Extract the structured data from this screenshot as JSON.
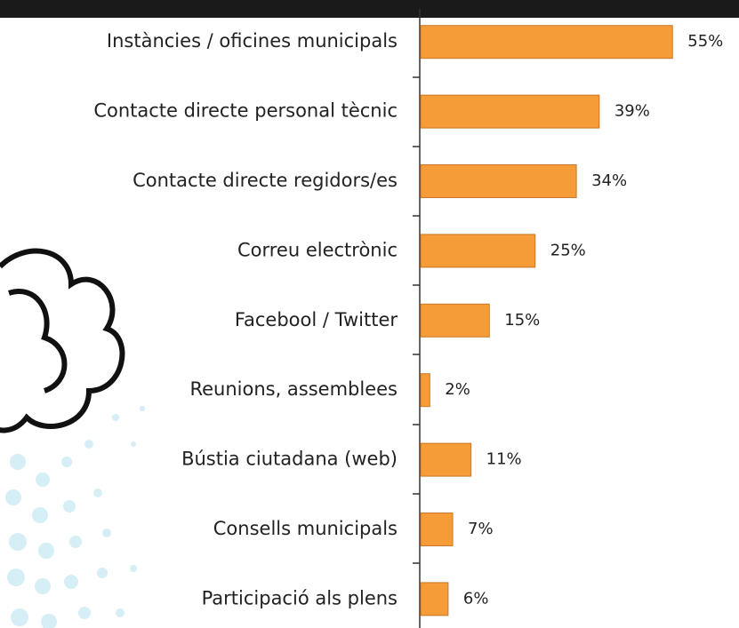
{
  "chart_data": {
    "type": "bar",
    "orientation": "horizontal",
    "categories": [
      "Instàncies / oficines municipals",
      "Contacte directe personal tècnic",
      "Contacte directe regidors/es",
      "Correu electrònic",
      "Facebool / Twitter",
      "Reunions, assemblees",
      "Bústia ciutadana (web)",
      "Consells municipals",
      "Participació als plens"
    ],
    "values": [
      55,
      39,
      34,
      25,
      15,
      2,
      11,
      7,
      6
    ],
    "value_labels": [
      "55%",
      "39%",
      "34%",
      "25%",
      "15%",
      "2%",
      "11%",
      "7%",
      "6%"
    ],
    "color": "#f59b38"
  }
}
